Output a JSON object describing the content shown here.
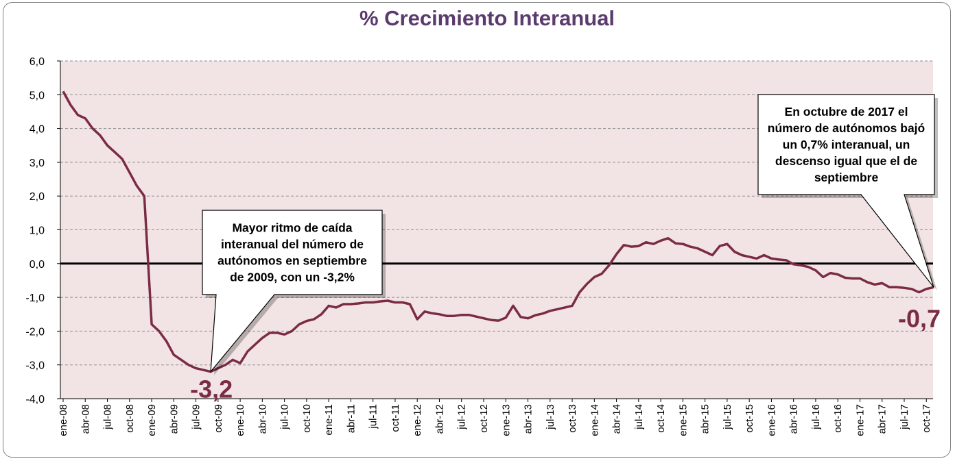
{
  "chart_data": {
    "type": "line",
    "title": "% Crecimiento Interanual",
    "xlabel": "",
    "ylabel": "",
    "ylim": [
      -4,
      6
    ],
    "yticks": [
      "6,0",
      "5,0",
      "4,0",
      "3,0",
      "2,0",
      "1,0",
      "0,0",
      "-1,0",
      "-2,0",
      "-3,0",
      "-4,0"
    ],
    "ytick_values": [
      6,
      5,
      4,
      3,
      2,
      1,
      0,
      -1,
      -2,
      -3,
      -4
    ],
    "xtick_labels": [
      "ene-08",
      "abr-08",
      "jul-08",
      "oct-08",
      "ene-09",
      "abr-09",
      "jul-09",
      "oct-09",
      "ene-10",
      "abr-10",
      "jul-10",
      "oct-10",
      "ene-11",
      "abr-11",
      "jul-11",
      "oct-11",
      "ene-12",
      "abr-12",
      "jul-12",
      "oct-12",
      "ene-13",
      "abr-13",
      "jul-13",
      "oct-13",
      "ene-14",
      "abr-14",
      "jul-14",
      "oct-14",
      "ene-15",
      "abr-15",
      "jul-15",
      "oct-15",
      "ene-16",
      "abr-16",
      "jul-16",
      "oct-16",
      "ene-17",
      "abr-17",
      "jul-17",
      "oct-17"
    ],
    "grid": true,
    "colors": {
      "line": "#7b2c45",
      "plot_background": "#f2e4e4",
      "grid": "#8c8c8c",
      "zero_line": "#000000",
      "title": "#5b3a6e"
    },
    "series": [
      {
        "values": [
          5.1,
          4.7,
          4.4,
          4.3,
          4.0,
          3.8,
          3.5,
          3.3,
          3.1,
          2.7,
          2.3,
          2.0,
          -1.8,
          -2.0,
          -2.3,
          -2.7,
          -2.85,
          -3.0,
          -3.1,
          -3.15,
          -3.2,
          -3.1,
          -3.0,
          -2.85,
          -2.95,
          -2.6,
          -2.4,
          -2.2,
          -2.05,
          -2.05,
          -2.1,
          -2.0,
          -1.8,
          -1.7,
          -1.65,
          -1.5,
          -1.25,
          -1.3,
          -1.2,
          -1.2,
          -1.18,
          -1.15,
          -1.15,
          -1.12,
          -1.1,
          -1.15,
          -1.15,
          -1.2,
          -1.65,
          -1.42,
          -1.47,
          -1.5,
          -1.55,
          -1.55,
          -1.52,
          -1.52,
          -1.57,
          -1.62,
          -1.67,
          -1.69,
          -1.6,
          -1.25,
          -1.58,
          -1.62,
          -1.53,
          -1.48,
          -1.4,
          -1.35,
          -1.3,
          -1.25,
          -0.85,
          -0.6,
          -0.4,
          -0.3,
          -0.05,
          0.28,
          0.55,
          0.5,
          0.52,
          0.63,
          0.58,
          0.68,
          0.75,
          0.6,
          0.58,
          0.5,
          0.45,
          0.35,
          0.25,
          0.52,
          0.58,
          0.35,
          0.25,
          0.2,
          0.15,
          0.25,
          0.15,
          0.12,
          0.1,
          -0.02,
          -0.05,
          -0.1,
          -0.2,
          -0.4,
          -0.28,
          -0.32,
          -0.42,
          -0.44,
          -0.44,
          -0.55,
          -0.62,
          -0.58,
          -0.7,
          -0.7,
          -0.72,
          -0.75,
          -0.85,
          -0.75,
          -0.7
        ]
      }
    ],
    "annotations": [
      {
        "text": "-3,2",
        "index": 20,
        "value": -3.2
      },
      {
        "text": "-0,7",
        "index": 118,
        "value": -0.7
      }
    ],
    "callouts": [
      {
        "lines": [
          "Mayor ritmo de caída",
          "interanual del número de",
          "autónomos en septiembre",
          "de 2009,  con un -3,2%"
        ],
        "target_index": 20
      },
      {
        "lines": [
          "En octubre de 2017 el",
          "número de autónomos bajó",
          "un 0,7% interanual, un",
          "descenso igual que el de",
          "septiembre"
        ],
        "target_index": 118
      }
    ]
  }
}
